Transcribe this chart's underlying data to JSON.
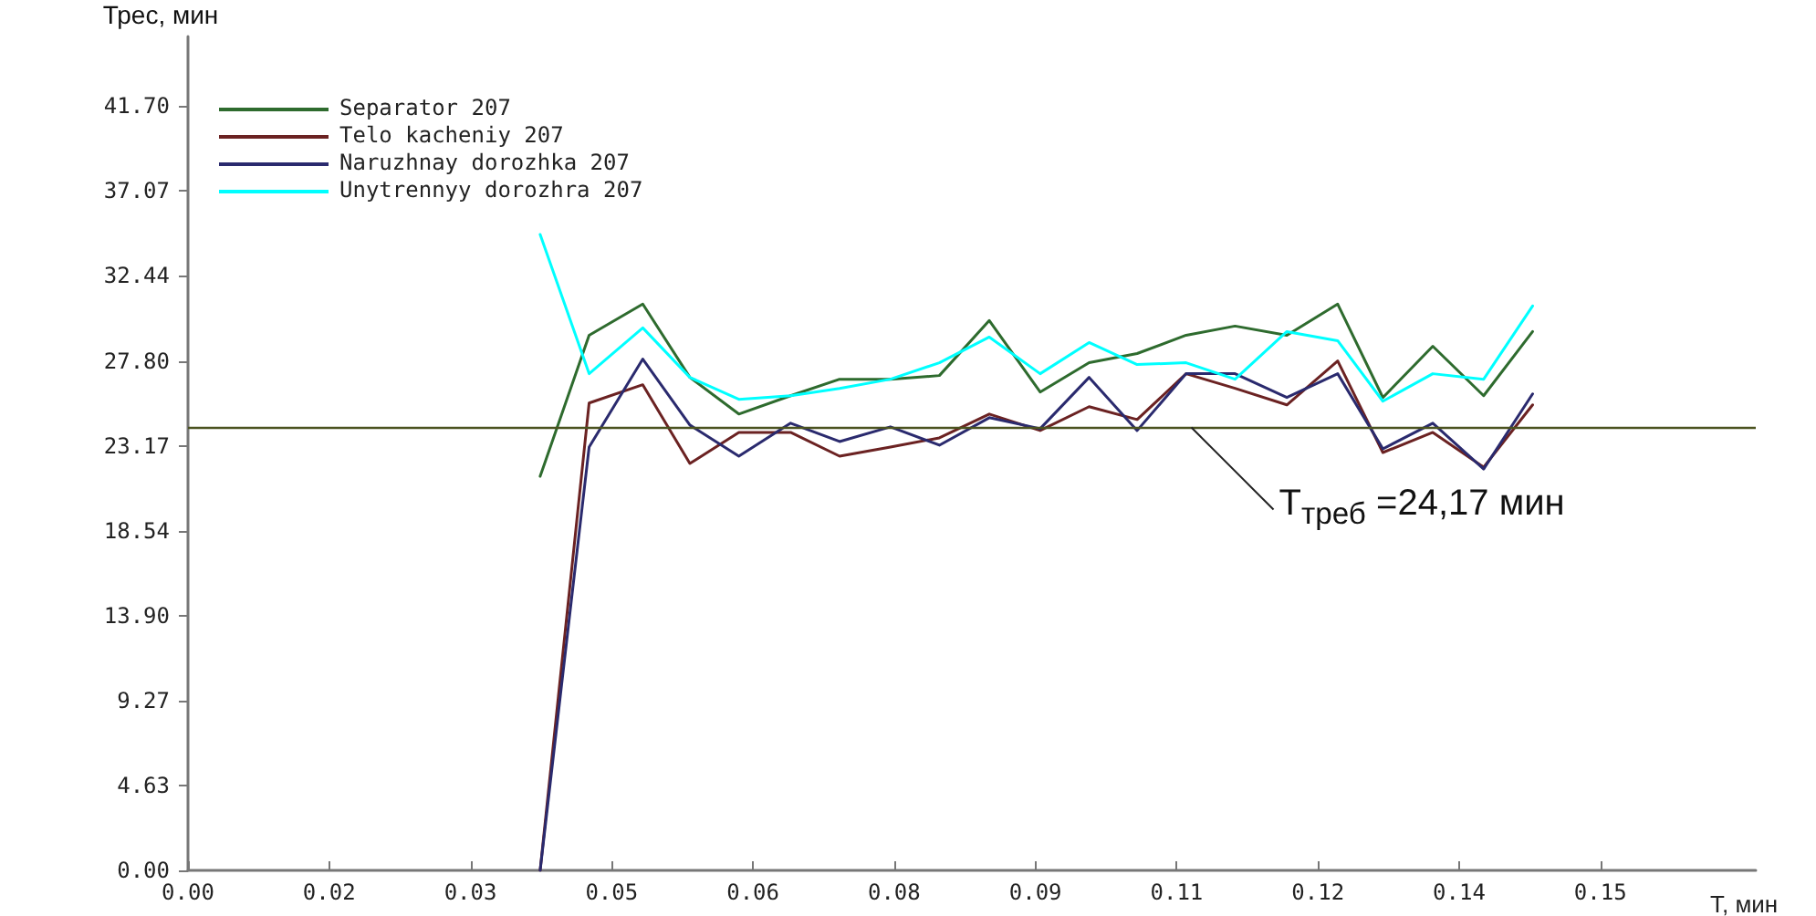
{
  "chart_data": {
    "type": "line",
    "xlabel": "T, мин",
    "ylabel": "Трес, мин",
    "xlim": [
      0,
      0.1665
    ],
    "ylim": [
      0,
      45.5
    ],
    "xticks": [
      {
        "value": 0,
        "label": "0.00"
      },
      {
        "value": 0.015,
        "label": "0.02"
      },
      {
        "value": 0.03,
        "label": "0.03"
      },
      {
        "value": 0.045,
        "label": "0.05"
      },
      {
        "value": 0.06,
        "label": "0.06"
      },
      {
        "value": 0.075,
        "label": "0.08"
      },
      {
        "value": 0.09,
        "label": "0.09"
      },
      {
        "value": 0.105,
        "label": "0.11"
      },
      {
        "value": 0.12,
        "label": "0.12"
      },
      {
        "value": 0.135,
        "label": "0.14"
      },
      {
        "value": 0.15,
        "label": "0.15"
      }
    ],
    "yticks": [
      {
        "value": 0,
        "label": "0.00"
      },
      {
        "value": 4.63,
        "label": "4.63"
      },
      {
        "value": 9.27,
        "label": "9.27"
      },
      {
        "value": 13.9,
        "label": "13.90"
      },
      {
        "value": 18.54,
        "label": "18.54"
      },
      {
        "value": 23.17,
        "label": "23.17"
      },
      {
        "value": 27.8,
        "label": "27.80"
      },
      {
        "value": 32.44,
        "label": "32.44"
      },
      {
        "value": 37.07,
        "label": "37.07"
      },
      {
        "value": 41.7,
        "label": "41.70"
      }
    ],
    "x": [
      0.0374,
      0.0426,
      0.0483,
      0.0533,
      0.0585,
      0.064,
      0.0692,
      0.0746,
      0.0798,
      0.0851,
      0.0905,
      0.0957,
      0.1008,
      0.106,
      0.1112,
      0.1167,
      0.1221,
      0.1269,
      0.1322,
      0.1376,
      0.1428
    ],
    "series": [
      {
        "name": "Separator 207",
        "color": "#2e6b2e",
        "values": [
          21.5,
          29.2,
          30.9,
          26.9,
          24.9,
          25.9,
          26.8,
          26.8,
          27.0,
          30.0,
          26.1,
          27.7,
          28.2,
          29.2,
          29.7,
          29.2,
          30.9,
          25.8,
          28.6,
          25.9,
          29.4
        ]
      },
      {
        "name": "Telo kacheniy 207",
        "color": "#6b2222",
        "values": [
          0,
          25.5,
          26.5,
          22.2,
          23.9,
          23.9,
          22.6,
          23.1,
          23.6,
          24.9,
          24.0,
          25.3,
          24.6,
          27.1,
          26.3,
          25.4,
          27.8,
          22.8,
          23.9,
          22.0,
          25.4
        ]
      },
      {
        "name": "Naruzhnay dorozhka 207",
        "color": "#2a2a6e",
        "values": [
          0,
          23.1,
          27.9,
          24.3,
          22.6,
          24.4,
          23.4,
          24.2,
          23.2,
          24.7,
          24.1,
          26.9,
          24.0,
          27.1,
          27.1,
          25.8,
          27.1,
          23.0,
          24.4,
          21.9,
          26.0
        ]
      },
      {
        "name": "Unytrennyy dorozhra 207",
        "color": "#00ffff",
        "values": [
          34.7,
          27.1,
          29.6,
          26.9,
          25.7,
          25.9,
          26.3,
          26.8,
          27.7,
          29.1,
          27.1,
          28.8,
          27.6,
          27.7,
          26.8,
          29.4,
          28.9,
          25.6,
          27.1,
          26.8,
          30.8
        ]
      }
    ],
    "ref_lines": [
      {
        "axis": "y",
        "value": 24.17,
        "label": "T$_{треб}$ =24,17 мин",
        "color": "#4b5320"
      }
    ],
    "legend": "top left",
    "grid": false,
    "marker": "none",
    "line_style": "solid"
  }
}
